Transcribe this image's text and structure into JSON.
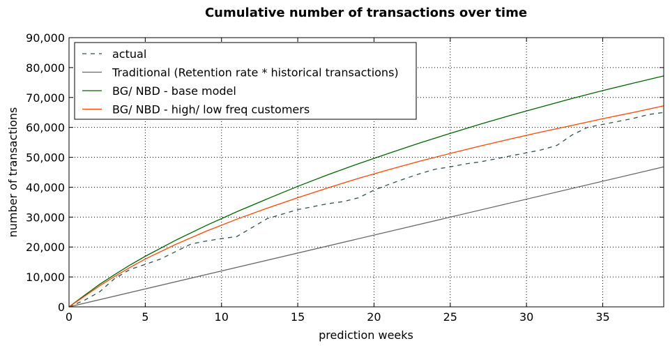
{
  "chart_data": {
    "type": "line",
    "title": "Cumulative number of transactions over time",
    "xlabel": "prediction weeks",
    "ylabel": "number of transactions",
    "xlim": [
      0,
      39
    ],
    "ylim": [
      0,
      90000
    ],
    "xticks": [
      0,
      5,
      10,
      15,
      20,
      25,
      30,
      35
    ],
    "xtick_labels": [
      "0",
      "5",
      "10",
      "15",
      "20",
      "25",
      "30",
      "35"
    ],
    "yticks": [
      0,
      10000,
      20000,
      30000,
      40000,
      50000,
      60000,
      70000,
      80000,
      90000
    ],
    "ytick_labels": [
      "0",
      "10,000",
      "20,000",
      "30,000",
      "40,000",
      "50,000",
      "60,000",
      "70,000",
      "80,000",
      "90,000"
    ],
    "grid": true,
    "legend_position": "top-left",
    "series": [
      {
        "name": "actual",
        "color": "#2f4f4f",
        "style": "dashed",
        "x": [
          0,
          1,
          2,
          3,
          4,
          5,
          6,
          7,
          8,
          9,
          10,
          11,
          12,
          13,
          14,
          15,
          16,
          17,
          18,
          19,
          20,
          21,
          22,
          23,
          24,
          25,
          26,
          27,
          28,
          29,
          30,
          31,
          32,
          33,
          34,
          35,
          36,
          37,
          38,
          39
        ],
        "y": [
          0,
          2200,
          5000,
          9500,
          12500,
          14200,
          16000,
          18500,
          21000,
          22000,
          22800,
          23500,
          26500,
          29500,
          31000,
          32500,
          33500,
          34500,
          35200,
          36500,
          39000,
          41000,
          42800,
          44500,
          46000,
          46800,
          47800,
          48500,
          49500,
          50500,
          51500,
          52500,
          54000,
          57500,
          60000,
          61000,
          62000,
          63000,
          64300,
          65000
        ]
      },
      {
        "name": "Traditional (Retention rate * historical transactions)",
        "color": "#666666",
        "style": "solid",
        "x": [
          0,
          39
        ],
        "y": [
          0,
          46800
        ]
      },
      {
        "name": "BG/ NBD - base model",
        "color": "#006400",
        "style": "solid",
        "x": [
          0,
          1,
          2,
          3,
          4,
          5,
          7,
          9,
          11,
          13,
          15,
          17,
          19,
          21,
          23,
          25,
          27,
          29,
          31,
          33,
          35,
          37,
          39
        ],
        "y": [
          0,
          3800,
          7500,
          10800,
          14000,
          16900,
          22300,
          27200,
          31800,
          36100,
          40300,
          44200,
          47900,
          51400,
          54800,
          58000,
          61100,
          64100,
          66900,
          69700,
          72300,
          74800,
          77200
        ]
      },
      {
        "name": "BG/ NBD - high/ low freq customers",
        "color": "#ff4500",
        "style": "solid",
        "x": [
          0,
          1,
          2,
          3,
          4,
          5,
          7,
          9,
          11,
          13,
          15,
          17,
          19,
          21,
          23,
          25,
          27,
          29,
          31,
          33,
          35,
          37,
          39
        ],
        "y": [
          0,
          3500,
          7000,
          10200,
          13200,
          16000,
          20900,
          25300,
          29300,
          33000,
          36500,
          39800,
          43000,
          45900,
          48700,
          51300,
          53800,
          56200,
          58500,
          60700,
          62900,
          65000,
          67200
        ]
      }
    ]
  }
}
